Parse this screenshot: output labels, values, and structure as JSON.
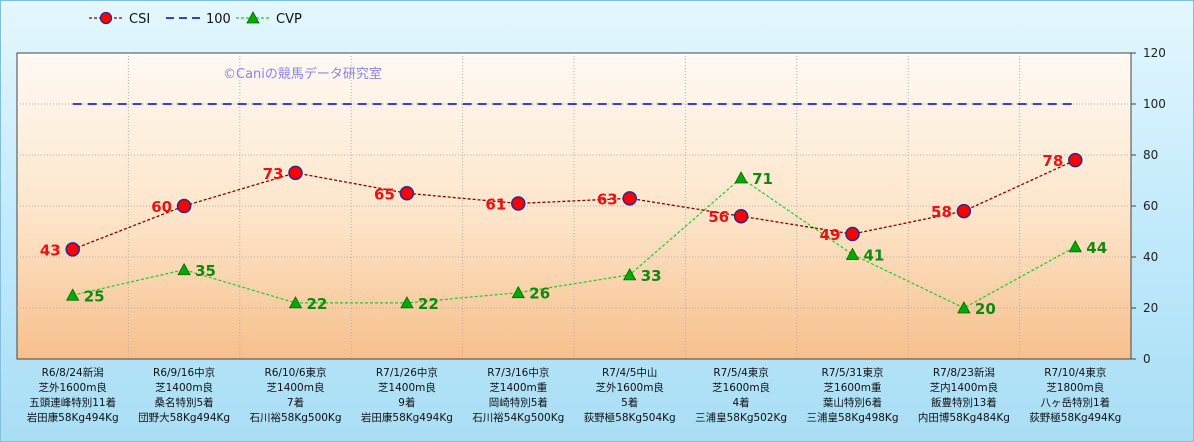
{
  "chart_data": {
    "type": "line",
    "watermark": "©Caniの競馬データ研究室",
    "ylim": [
      0,
      120
    ],
    "yticks": [
      0,
      20,
      40,
      60,
      80,
      100,
      120
    ],
    "legend_position": "top-left",
    "grid": true,
    "categories": [
      [
        "R6/8/24新潟",
        "芝外1600m良",
        "五頭連峰特別11着",
        "岩田康58Kg494Kg"
      ],
      [
        "R6/9/16中京",
        "芝1400m良",
        "桑名特別5着",
        "団野大58Kg494Kg"
      ],
      [
        "R6/10/6東京",
        "芝1400m良",
        "7着",
        "石川裕58Kg500Kg"
      ],
      [
        "R7/1/26中京",
        "芝1400m良",
        "9着",
        "岩田康58Kg494Kg"
      ],
      [
        "R7/3/16中京",
        "芝1400m重",
        "岡崎特別5着",
        "石川裕54Kg500Kg"
      ],
      [
        "R7/4/5中山",
        "芝外1600m良",
        "5着",
        "荻野極58Kg504Kg"
      ],
      [
        "R7/5/4東京",
        "芝1600m良",
        "4着",
        "三浦皇58Kg502Kg"
      ],
      [
        "R7/5/31東京",
        "芝1600m重",
        "葉山特別6着",
        "三浦皇58Kg498Kg"
      ],
      [
        "R7/8/23新潟",
        "芝内1400m良",
        "飯豊特別13着",
        "内田博58Kg484Kg"
      ],
      [
        "R7/10/4東京",
        "芝1800m良",
        "八ヶ岳特別1着",
        "荻野極58Kg494Kg"
      ]
    ],
    "series": [
      {
        "name": "CSI",
        "color": "#8b0000",
        "marker_color": "#ff0000",
        "marker": "circle",
        "values": [
          43,
          60,
          73,
          65,
          61,
          63,
          56,
          49,
          58,
          78
        ]
      },
      {
        "name": "100",
        "color": "#0000cc",
        "marker": "none",
        "values": [
          100,
          100,
          100,
          100,
          100,
          100,
          100,
          100,
          100,
          100
        ]
      },
      {
        "name": "CVP",
        "color": "#22cc22",
        "marker_color": "#00aa00",
        "marker": "triangle",
        "values": [
          25,
          35,
          22,
          22,
          26,
          33,
          71,
          41,
          20,
          44
        ]
      }
    ]
  }
}
